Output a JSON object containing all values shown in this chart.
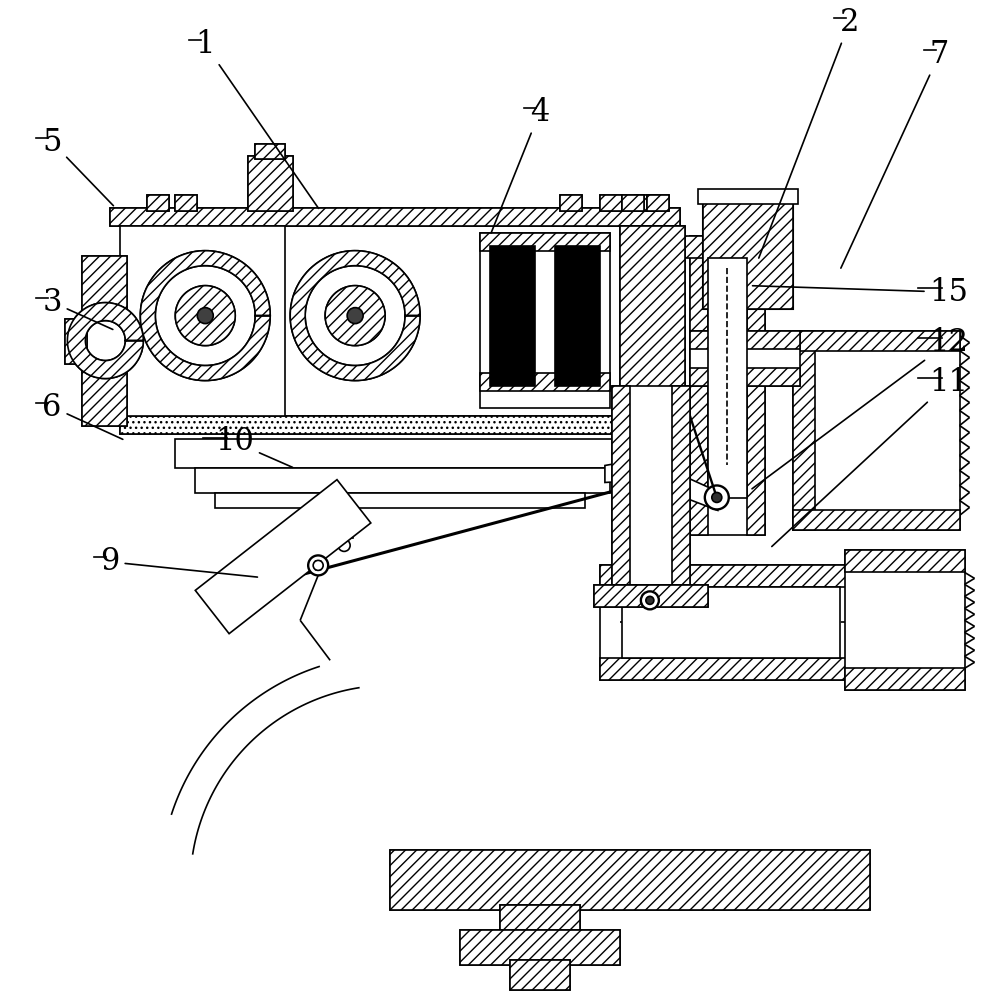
{
  "bg_color": "#ffffff",
  "lc": "#000000",
  "lw": 1.2,
  "tlw": 2.0,
  "fs": 22,
  "labels": {
    "1": [
      195,
      52,
      320,
      210
    ],
    "2": [
      840,
      30,
      780,
      260
    ],
    "3": [
      42,
      310,
      140,
      330
    ],
    "4": [
      530,
      120,
      500,
      235
    ],
    "5": [
      42,
      150,
      115,
      205
    ],
    "6": [
      42,
      415,
      128,
      440
    ],
    "7": [
      930,
      62,
      858,
      270
    ],
    "9": [
      100,
      570,
      340,
      590
    ],
    "10": [
      215,
      450,
      285,
      468
    ],
    "11": [
      930,
      390,
      800,
      545
    ],
    "12": [
      930,
      350,
      760,
      485
    ],
    "15": [
      930,
      300,
      730,
      285
    ]
  }
}
